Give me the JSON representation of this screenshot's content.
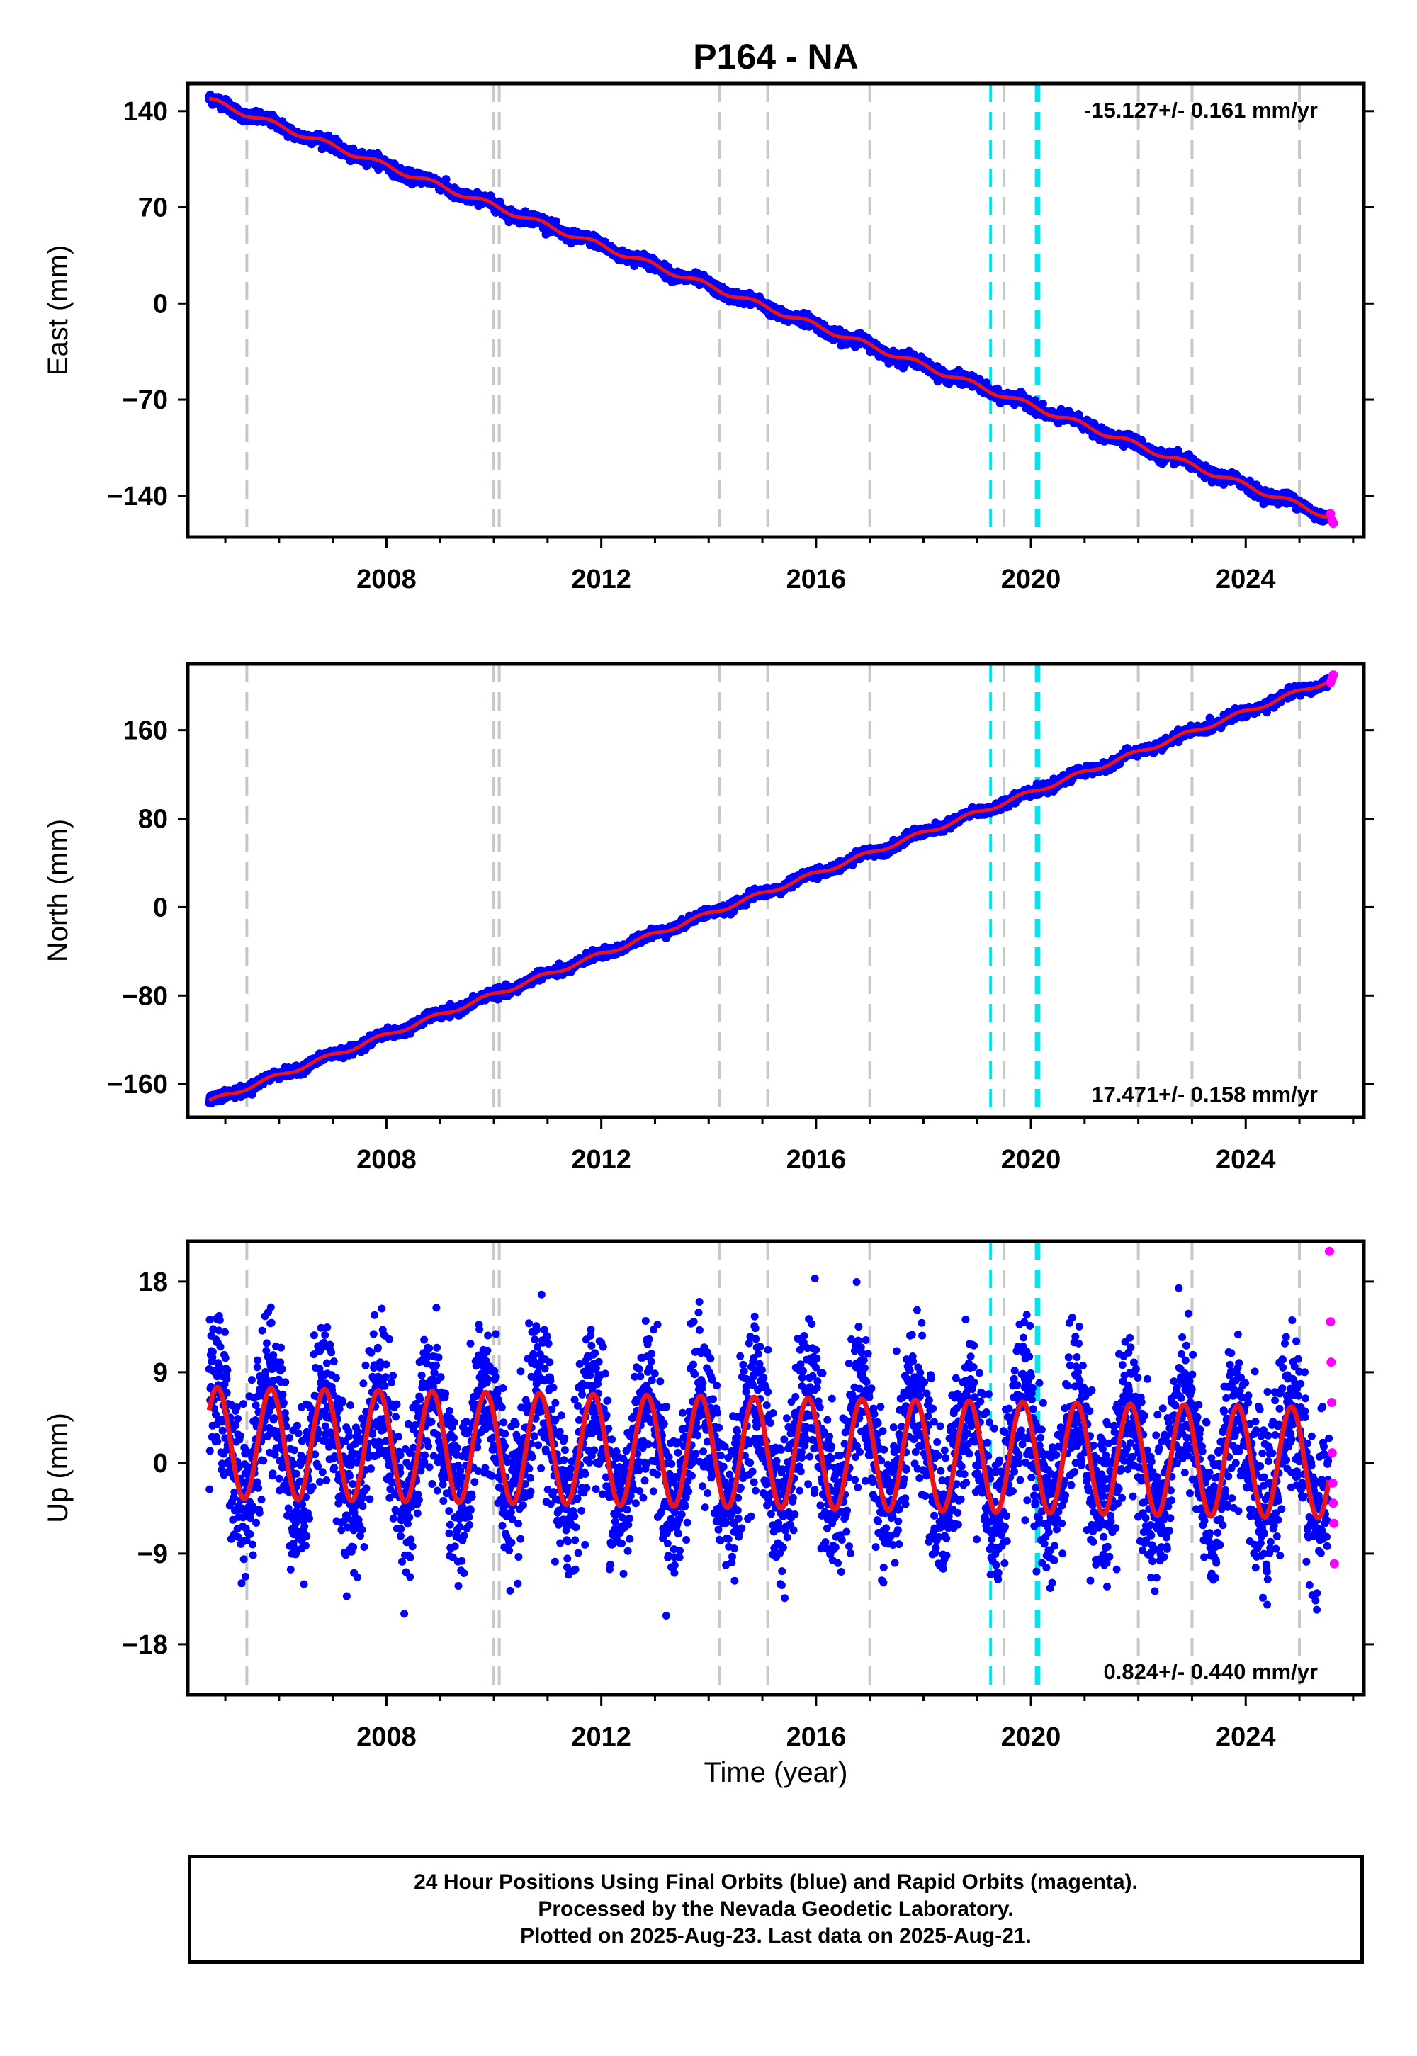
{
  "title": "P164 - NA",
  "x_axis_label": "Time (year)",
  "caption": [
    "24 Hour Positions Using Final Orbits (blue) and Rapid Orbits (magenta).",
    "Processed by the Nevada Geodetic Laboratory.",
    "Plotted on 2025-Aug-23. Last data on 2025-Aug-21."
  ],
  "colors": {
    "final_orbits": "#0000ff",
    "rapid_orbits": "#ff00ff",
    "model_fit": "#e8141e",
    "equipment_change_lines": "#c8c8c8",
    "earthquake_lines": "#00e5ee"
  },
  "chart_data": [
    {
      "type": "scatter",
      "ylabel": "East (mm)",
      "rate_label": "-15.127+/- 0.161 mm/yr",
      "xlim": [
        2004.3,
        2026.2
      ],
      "ylim": [
        -170,
        160
      ],
      "x_ticks": [
        2008,
        2012,
        2016,
        2020,
        2024
      ],
      "y_ticks": [
        140,
        70,
        0,
        -70,
        -140
      ],
      "series": [
        {
          "name": "final orbits",
          "trend": {
            "x": [
              2004.7,
              2025.55
            ],
            "y": [
              148,
              -155
            ]
          },
          "seasonal_amplitude": 2,
          "scatter": 2
        },
        {
          "name": "rapid orbits",
          "x": [
            2025.58,
            2025.61,
            2025.63
          ],
          "y": [
            -153,
            -158,
            -160
          ]
        }
      ],
      "vertical_lines_gray": [
        2005.4,
        2010.0,
        2010.1,
        2014.2,
        2015.1,
        2017.0,
        2019.5,
        2022.0,
        2023.0,
        2025.0
      ],
      "vertical_lines_cyan": [
        2019.25,
        2020.1,
        2020.15
      ]
    },
    {
      "type": "scatter",
      "ylabel": "North (mm)",
      "rate_label": "17.471+/- 0.158 mm/yr",
      "xlim": [
        2004.3,
        2026.2
      ],
      "ylim": [
        -190,
        220
      ],
      "x_ticks": [
        2008,
        2012,
        2016,
        2020,
        2024
      ],
      "y_ticks": [
        160,
        80,
        0,
        -80,
        -160
      ],
      "series": [
        {
          "name": "final orbits",
          "trend": {
            "x": [
              2004.7,
              2025.55
            ],
            "y": [
              -176,
              205
            ]
          },
          "seasonal_amplitude": 2,
          "scatter": 2
        },
        {
          "name": "rapid orbits",
          "x": [
            2025.58,
            2025.61,
            2025.63
          ],
          "y": [
            203,
            207,
            210
          ]
        }
      ],
      "vertical_lines_gray": [
        2005.4,
        2010.0,
        2010.1,
        2014.2,
        2015.1,
        2017.0,
        2019.5,
        2022.0,
        2023.0,
        2025.0
      ],
      "vertical_lines_cyan": [
        2019.25,
        2020.1,
        2020.15
      ]
    },
    {
      "type": "scatter",
      "ylabel": "Up (mm)",
      "rate_label": "0.824+/- 0.440 mm/yr",
      "xlim": [
        2004.3,
        2026.2
      ],
      "ylim": [
        -23,
        22
      ],
      "x_ticks": [
        2008,
        2012,
        2016,
        2020,
        2024
      ],
      "y_ticks": [
        18,
        9,
        0,
        -9,
        -18
      ],
      "series": [
        {
          "name": "final orbits",
          "trend": {
            "x": [
              2004.7,
              2025.55
            ],
            "y": [
              2,
              0
            ]
          },
          "seasonal_amplitude": 5.5,
          "scatter": 3.8
        },
        {
          "name": "rapid orbits",
          "x": [
            2025.56,
            2025.58,
            2025.59,
            2025.6,
            2025.61,
            2025.62,
            2025.63,
            2025.64,
            2025.65
          ],
          "y": [
            21,
            14,
            10,
            6,
            1,
            -2,
            -4,
            -6,
            -10
          ]
        }
      ],
      "vertical_lines_gray": [
        2005.4,
        2010.0,
        2010.1,
        2014.2,
        2015.1,
        2017.0,
        2019.5,
        2022.0,
        2023.0,
        2025.0
      ],
      "vertical_lines_cyan": [
        2019.25,
        2020.1,
        2020.15
      ]
    }
  ]
}
